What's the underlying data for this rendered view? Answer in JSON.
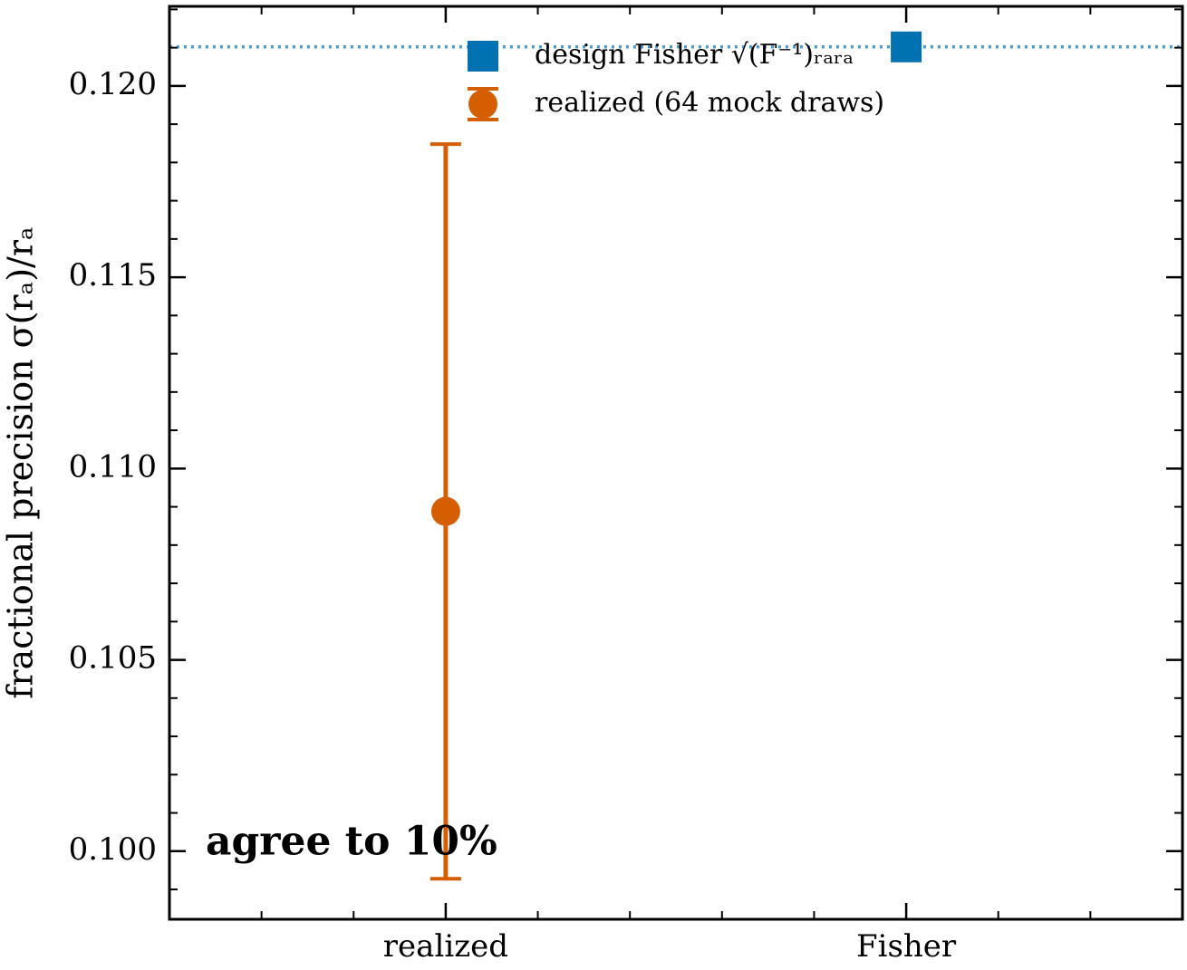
{
  "chart_data": {
    "type": "errorbar",
    "ylabel": "fractional precision  σ(rₐ)/rₐ",
    "annotation": "agree to 10%",
    "categories": [
      "realized",
      "Fisher"
    ],
    "series": [
      {
        "name": "design Fisher  √(F⁻¹)ᵣₐᵣₐ",
        "color": "#0072b2",
        "marker": "square",
        "values": [
          null,
          0.12102
        ]
      },
      {
        "name": "realized (64 mock draws)",
        "color": "#d55e00",
        "marker": "circle",
        "values": [
          0.10888,
          null
        ],
        "errors": [
          0.0096,
          null
        ]
      }
    ],
    "reference_line": {
      "value": 0.12102,
      "color": "#4a9fd0"
    },
    "ylim": [
      0.09822,
      0.12208
    ],
    "yticks": [
      {
        "value": 0.1,
        "label": "0.100"
      },
      0.105,
      {
        "value": 0.11,
        "label": "0.110"
      },
      0.115,
      {
        "value": 0.12,
        "label": "0.120"
      }
    ],
    "minor_ticks": true,
    "legend": "upper center"
  }
}
